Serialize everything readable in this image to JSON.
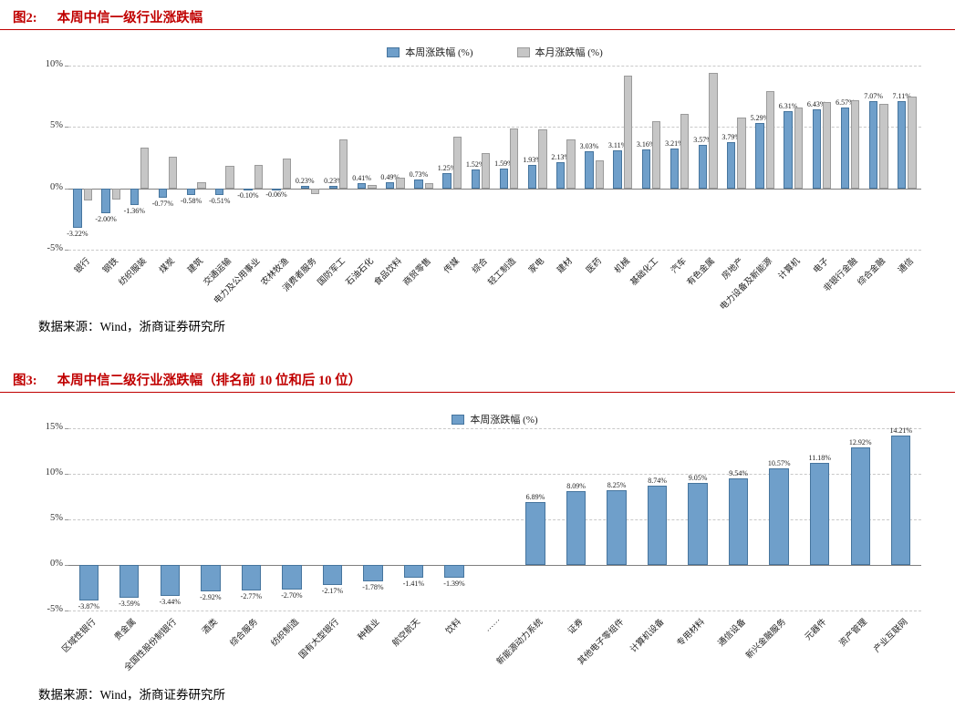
{
  "page": {
    "accent_color": "#c00000",
    "figures": [
      {
        "tag": "图2:",
        "title": "本周中信一级行业涨跌幅",
        "source": "数据来源：Wind，浙商证券研究所"
      },
      {
        "tag": "图3:",
        "title": "本周中信二级行业涨跌幅（排名前 10 位和后 10 位）",
        "source": "数据来源：Wind，浙商证券研究所"
      }
    ]
  },
  "chart_data": [
    {
      "type": "bar",
      "title": "本周中信一级行业涨跌幅",
      "legend_position": "top",
      "grid": true,
      "ylim": [
        -5,
        10
      ],
      "yticks": [
        -5,
        0,
        5,
        10
      ],
      "ytick_format": "percent",
      "categories": [
        "银行",
        "钢铁",
        "纺织服装",
        "煤炭",
        "建筑",
        "交通运输",
        "电力及公用事业",
        "农林牧渔",
        "消费者服务",
        "国防军工",
        "石油石化",
        "食品饮料",
        "商贸零售",
        "传媒",
        "综合",
        "轻工制造",
        "家电",
        "建材",
        "医药",
        "机械",
        "基础化工",
        "汽车",
        "有色金属",
        "房地产",
        "电力设备及新能源",
        "计算机",
        "电子",
        "非银行金融",
        "综合金融",
        "通信"
      ],
      "series": [
        {
          "name": "本周涨跌幅 (%)",
          "color": "#6f9fca",
          "border": "#46759e",
          "data_labels": true,
          "values": [
            -3.22,
            -2.0,
            -1.36,
            -0.77,
            -0.58,
            -0.51,
            -0.1,
            -0.06,
            0.23,
            0.23,
            0.41,
            0.49,
            0.73,
            1.25,
            1.52,
            1.59,
            1.93,
            2.13,
            3.03,
            3.11,
            3.16,
            3.21,
            3.57,
            3.79,
            5.29,
            6.31,
            6.43,
            6.57,
            7.07,
            7.11
          ]
        },
        {
          "name": "本月涨跌幅 (%)",
          "color": "#c6c6c6",
          "border": "#9b9b9b",
          "data_labels": false,
          "values": [
            -1.0,
            -0.95,
            3.3,
            2.6,
            0.5,
            1.8,
            1.9,
            2.4,
            -0.5,
            4.0,
            0.3,
            0.9,
            0.4,
            4.2,
            2.9,
            4.9,
            4.8,
            4.0,
            2.3,
            9.2,
            5.5,
            6.1,
            9.4,
            5.8,
            7.9,
            6.6,
            7.0,
            7.2,
            6.9,
            7.5
          ]
        }
      ]
    },
    {
      "type": "bar",
      "title": "本周中信二级行业涨跌幅（排名前 10 位和后 10 位）",
      "legend_position": "top",
      "grid": true,
      "ylim": [
        -5,
        15
      ],
      "yticks": [
        -5,
        0,
        5,
        10,
        15
      ],
      "ytick_format": "percent",
      "categories": [
        "区域性银行",
        "贵金属",
        "全国性股份制银行",
        "酒类",
        "综合服务",
        "纺织制造",
        "国有大型银行",
        "种植业",
        "航空航天",
        "饮料",
        "……",
        "新能源动力系统",
        "证券",
        "其他电子零组件",
        "计算机设备",
        "专用材料",
        "通信设备",
        "新兴金融服务",
        "元器件",
        "资产管理",
        "产业互联网"
      ],
      "series": [
        {
          "name": "本周涨跌幅 (%)",
          "color": "#6f9fca",
          "border": "#46759e",
          "data_labels": true,
          "values": [
            -3.87,
            -3.59,
            -3.44,
            -2.92,
            -2.77,
            -2.7,
            -2.17,
            -1.78,
            -1.41,
            -1.39,
            null,
            6.89,
            8.09,
            8.25,
            8.74,
            9.05,
            9.54,
            10.57,
            11.18,
            12.92,
            14.21
          ]
        }
      ]
    }
  ]
}
